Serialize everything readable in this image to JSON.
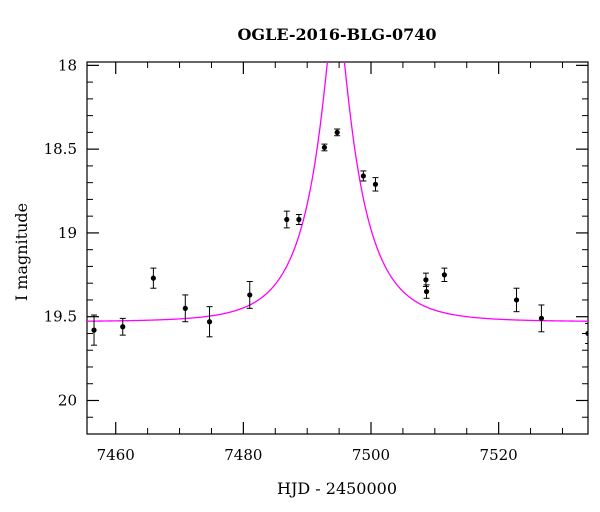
{
  "chart_data": {
    "type": "scatter",
    "title": "OGLE-2016-BLG-0740",
    "xlabel": "HJD - 2450000",
    "ylabel": "I magnitude",
    "xlim": [
      7455.5,
      7534
    ],
    "ylim": [
      20.2,
      17.98
    ],
    "y_inverted": true,
    "x_ticks": [
      7460,
      7480,
      7500,
      7520
    ],
    "x_tick_labels": [
      "7460",
      "7480",
      "7500",
      "7520"
    ],
    "y_ticks": [
      18,
      18.5,
      19,
      19.5,
      20
    ],
    "y_tick_labels": [
      "18",
      "18.5",
      "19",
      "19.5",
      "20"
    ],
    "x_minor_step": 5,
    "y_minor_step": 0.1,
    "grid": false,
    "series": [
      {
        "kind": "points",
        "color": "#000000",
        "points": [
          {
            "x": 7456.6,
            "y": 19.58,
            "err": 0.09
          },
          {
            "x": 7461.1,
            "y": 19.56,
            "err": 0.05
          },
          {
            "x": 7465.9,
            "y": 19.27,
            "err": 0.06
          },
          {
            "x": 7470.9,
            "y": 19.45,
            "err": 0.08
          },
          {
            "x": 7474.7,
            "y": 19.53,
            "err": 0.09
          },
          {
            "x": 7481.0,
            "y": 19.37,
            "err": 0.08
          },
          {
            "x": 7486.8,
            "y": 18.92,
            "err": 0.05
          },
          {
            "x": 7488.7,
            "y": 18.92,
            "err": 0.03
          },
          {
            "x": 7492.7,
            "y": 18.49,
            "err": 0.02
          },
          {
            "x": 7494.7,
            "y": 18.4,
            "err": 0.02
          },
          {
            "x": 7498.8,
            "y": 18.66,
            "err": 0.03
          },
          {
            "x": 7500.7,
            "y": 18.71,
            "err": 0.04
          },
          {
            "x": 7508.6,
            "y": 19.28,
            "err": 0.04
          },
          {
            "x": 7508.7,
            "y": 19.35,
            "err": 0.04
          },
          {
            "x": 7511.5,
            "y": 19.25,
            "err": 0.04
          },
          {
            "x": 7522.8,
            "y": 19.4,
            "err": 0.07
          },
          {
            "x": 7526.7,
            "y": 19.51,
            "err": 0.08
          },
          {
            "x": 7534.0,
            "y": 19.6,
            "err": 0.06
          }
        ]
      },
      {
        "kind": "model-curve",
        "color": "#ff00ff",
        "curve": {
          "t0": 7494.5,
          "tE": 8.0,
          "u0": 0.18,
          "baseline": 19.53
        }
      }
    ]
  }
}
